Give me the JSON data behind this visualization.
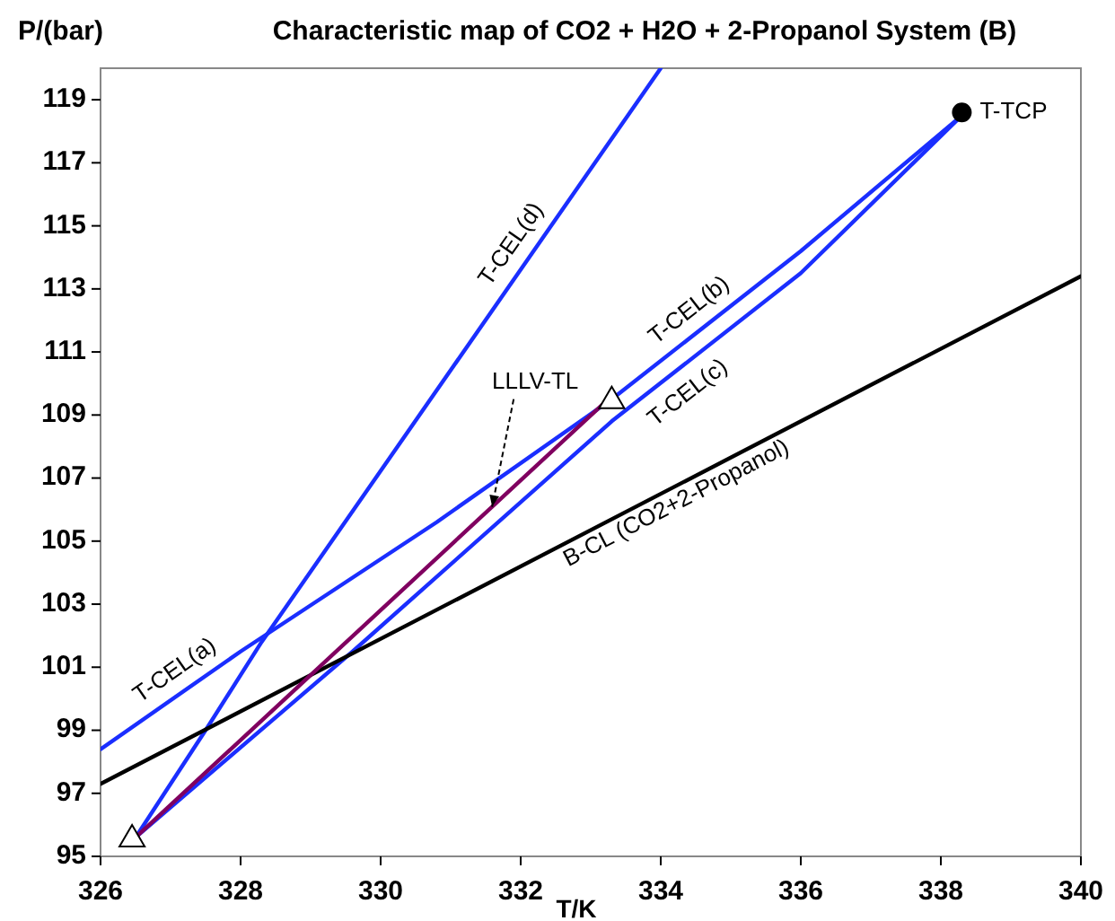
{
  "chart_data": {
    "type": "line",
    "title": "Characteristic map of CO2 + H2O + 2-Propanol System (B)",
    "xlabel": "T/K",
    "ylabel": "P/(bar)",
    "xlim": [
      326,
      340
    ],
    "ylim": [
      95,
      120
    ],
    "xticks": [
      326,
      328,
      330,
      332,
      334,
      336,
      338,
      340
    ],
    "yticks": [
      95,
      97,
      99,
      101,
      103,
      105,
      107,
      109,
      111,
      113,
      115,
      117,
      119
    ],
    "grid": false,
    "marker": "none",
    "line_style": "solid",
    "series": [
      {
        "name": "T-CEL(a)",
        "color": "#1a2eff",
        "x": [
          326,
          328,
          330.8,
          333.3
        ],
        "values": [
          98.4,
          101.5,
          105.6,
          109.5
        ]
      },
      {
        "name": "T-CEL(b)",
        "color": "#1a2eff",
        "x": [
          333.3,
          336,
          338.3
        ],
        "values": [
          109.5,
          114.2,
          118.5
        ]
      },
      {
        "name": "T-CEL(c)",
        "color": "#1a2eff",
        "x": [
          326.5,
          329.6,
          333.3,
          336,
          338.3
        ],
        "values": [
          95.6,
          101.5,
          108.8,
          113.5,
          118.5
        ]
      },
      {
        "name": "T-CEL(d)",
        "color": "#1a2eff",
        "x": [
          326.5,
          327.5,
          328.3,
          334
        ],
        "values": [
          95.6,
          99,
          101.8,
          120
        ]
      },
      {
        "name": "B-CL (CO2+2-Propanol)",
        "color": "#000000",
        "x": [
          326,
          340
        ],
        "values": [
          97.3,
          113.4
        ]
      },
      {
        "name": "LLLV-TL",
        "color": "#800060",
        "x": [
          326.5,
          333.2
        ],
        "values": [
          95.6,
          109.4
        ]
      },
      {
        "type": "scatter",
        "marker": "triangle",
        "color": "#ffffff",
        "x": [
          326.45,
          333.3
        ],
        "values": [
          95.6,
          109.5
        ]
      },
      {
        "type": "scatter",
        "marker": "circle",
        "name": "T-TCP",
        "color": "#000000",
        "x": [
          338.3
        ],
        "values": [
          118.6
        ]
      }
    ]
  }
}
